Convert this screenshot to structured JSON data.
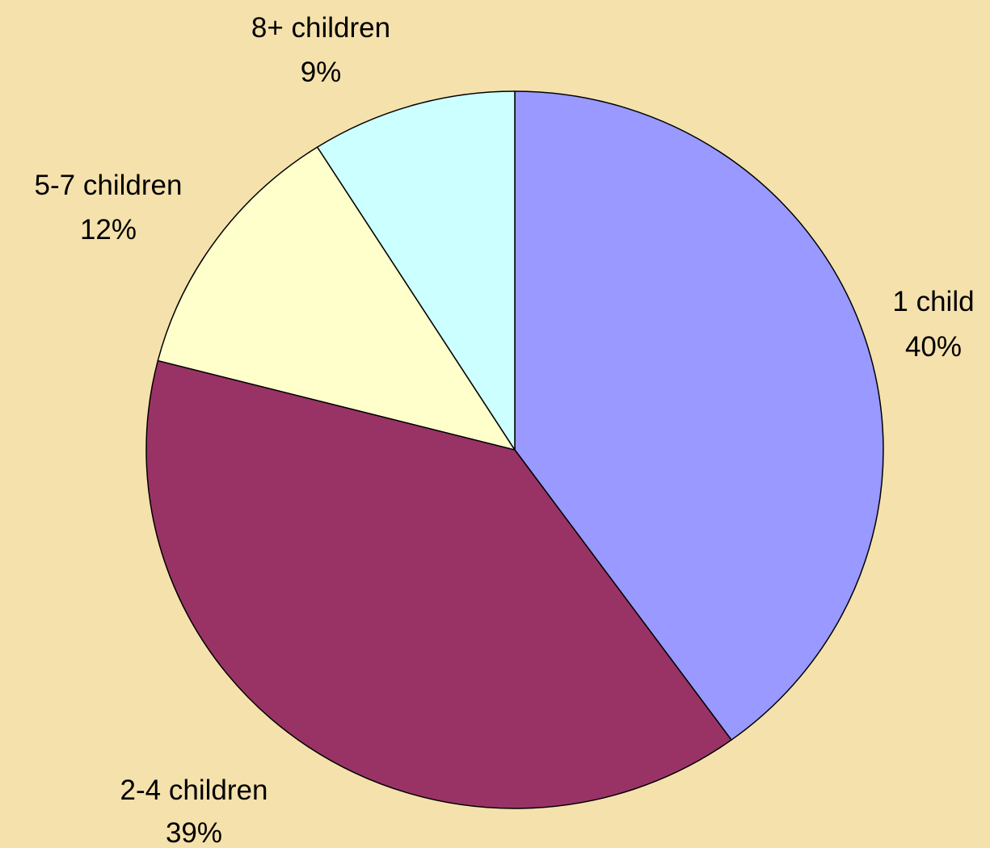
{
  "chart_data": {
    "type": "pie",
    "title": "",
    "background": "#F5E1AC",
    "stroke": "#000000",
    "slices": [
      {
        "label": "1 child",
        "value": 40,
        "value_label": "40%",
        "color": "#9999FF"
      },
      {
        "label": "2-4 children",
        "value": 39,
        "value_label": "39%",
        "color": "#993366"
      },
      {
        "label": "5-7 children",
        "value": 12,
        "value_label": "12%",
        "color": "#FFFFCC"
      },
      {
        "label": "8+ children",
        "value": 9,
        "value_label": "9%",
        "color": "#CCFFFF"
      }
    ],
    "start_angle_deg": 0,
    "direction": "clockwise"
  }
}
